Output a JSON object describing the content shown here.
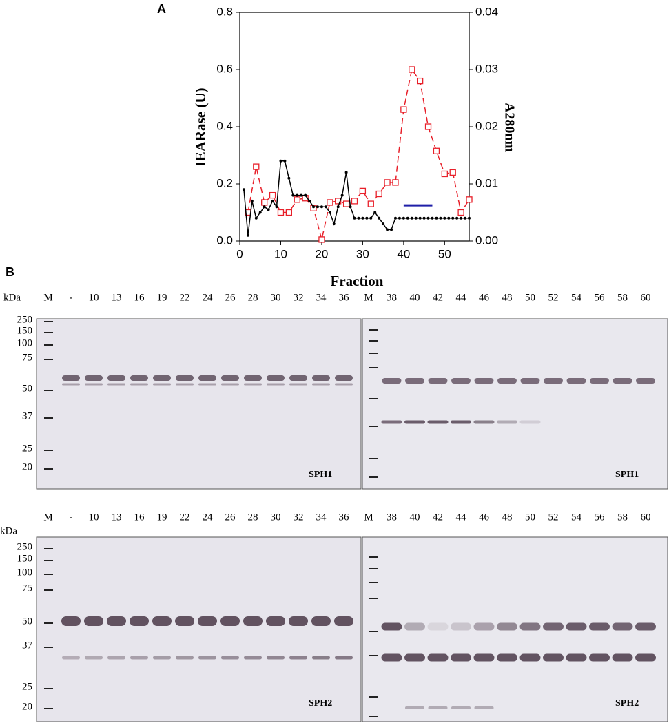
{
  "chart_data": {
    "type": "line",
    "xlabel": "Fraction",
    "ylabel": "IEARase (U)",
    "y2label": "A280nm",
    "xlim": [
      0,
      56
    ],
    "xticks": [
      0,
      10,
      20,
      30,
      40,
      50
    ],
    "ylim": [
      0,
      0.8
    ],
    "yticks": [
      {
        "value": 0,
        "label": "0.0"
      },
      {
        "value": 0.2,
        "label": "0.2"
      },
      {
        "value": 0.4,
        "label": "0.4"
      },
      {
        "value": 0.6,
        "label": "0.6"
      },
      {
        "value": 0.8,
        "label": "0.8"
      }
    ],
    "y2lim": [
      0,
      0.04
    ],
    "y2ticks": [
      {
        "value": 0,
        "label": "0.00"
      },
      {
        "value": 0.01,
        "label": "0.01"
      },
      {
        "value": 0.02,
        "label": "0.02"
      },
      {
        "value": 0.03,
        "label": "0.03"
      },
      {
        "value": 0.04,
        "label": "0.04"
      }
    ],
    "series": [
      {
        "color": "#e8202a",
        "marker": "square",
        "dash": true,
        "x": [
          2,
          4,
          6,
          8,
          10,
          12,
          14,
          16,
          18,
          20,
          22,
          24,
          26,
          28,
          30,
          32,
          34,
          36,
          38,
          40,
          42,
          44,
          46,
          48,
          50,
          52,
          54,
          56
        ],
        "values": [
          0.1,
          0.26,
          0.135,
          0.16,
          0.1,
          0.1,
          0.145,
          0.15,
          0.115,
          0.005,
          0.135,
          0.14,
          0.13,
          0.14,
          0.175,
          0.13,
          0.165,
          0.205,
          0.205,
          0.46,
          0.6,
          0.56,
          0.4,
          0.315,
          0.235,
          0.24,
          0.1,
          0.145
        ]
      },
      {
        "color": "#000000",
        "marker": "dot",
        "dash": false,
        "axis": "y2",
        "x": [
          1,
          2,
          3,
          4,
          5,
          6,
          7,
          8,
          9,
          10,
          11,
          12,
          13,
          14,
          15,
          16,
          17,
          18,
          19,
          20,
          21,
          22,
          23,
          24,
          25,
          26,
          27,
          28,
          29,
          30,
          31,
          32,
          33,
          34,
          35,
          36,
          37,
          38,
          39,
          40,
          41,
          42,
          43,
          44,
          45,
          46,
          47,
          48,
          49,
          50,
          51,
          52,
          53,
          54,
          55,
          56
        ],
        "values": [
          0.009,
          0.001,
          0.007,
          0.004,
          0.005,
          0.006,
          0.0055,
          0.007,
          0.006,
          0.014,
          0.014,
          0.011,
          0.008,
          0.008,
          0.008,
          0.008,
          0.007,
          0.006,
          0.006,
          0.006,
          0.006,
          0.005,
          0.003,
          0.006,
          0.008,
          0.012,
          0.006,
          0.004,
          0.004,
          0.004,
          0.004,
          0.004,
          0.005,
          0.004,
          0.003,
          0.002,
          0.002,
          0.004,
          0.004,
          0.004,
          0.004,
          0.004,
          0.004,
          0.004,
          0.004,
          0.004,
          0.004,
          0.004,
          0.004,
          0.004,
          0.004,
          0.004,
          0.004,
          0.004,
          0.004,
          0.004
        ]
      }
    ],
    "bar": {
      "x": [
        40,
        47
      ],
      "y": 0.125,
      "color": "#1f1fa8"
    }
  },
  "labels": {
    "a": "A",
    "b": "B"
  },
  "blot_rows": [
    {
      "kda": "kDa",
      "markers": [
        "250",
        "150",
        "100",
        "75",
        "50",
        "37",
        "25",
        "20"
      ],
      "lanes": [
        "M",
        "-",
        "10",
        "13",
        "16",
        "19",
        "22",
        "24",
        "26",
        "28",
        "30",
        "32",
        "34",
        "36",
        "M",
        "38",
        "40",
        "42",
        "44",
        "46",
        "48",
        "50",
        "52",
        "54",
        "56",
        "58",
        "60"
      ],
      "tag_left": "SPH1",
      "tag_right": "SPH1"
    },
    {
      "kda": "kDa",
      "markers": [
        "250",
        "150",
        "100",
        "75",
        "50",
        "37",
        "25",
        "20"
      ],
      "lanes": [
        "M",
        "-",
        "10",
        "13",
        "16",
        "19",
        "22",
        "24",
        "26",
        "28",
        "30",
        "32",
        "34",
        "36",
        "M",
        "38",
        "40",
        "42",
        "44",
        "46",
        "48",
        "50",
        "52",
        "54",
        "56",
        "58",
        "60"
      ],
      "tag_left": "SPH2",
      "tag_right": "SPH2"
    }
  ]
}
